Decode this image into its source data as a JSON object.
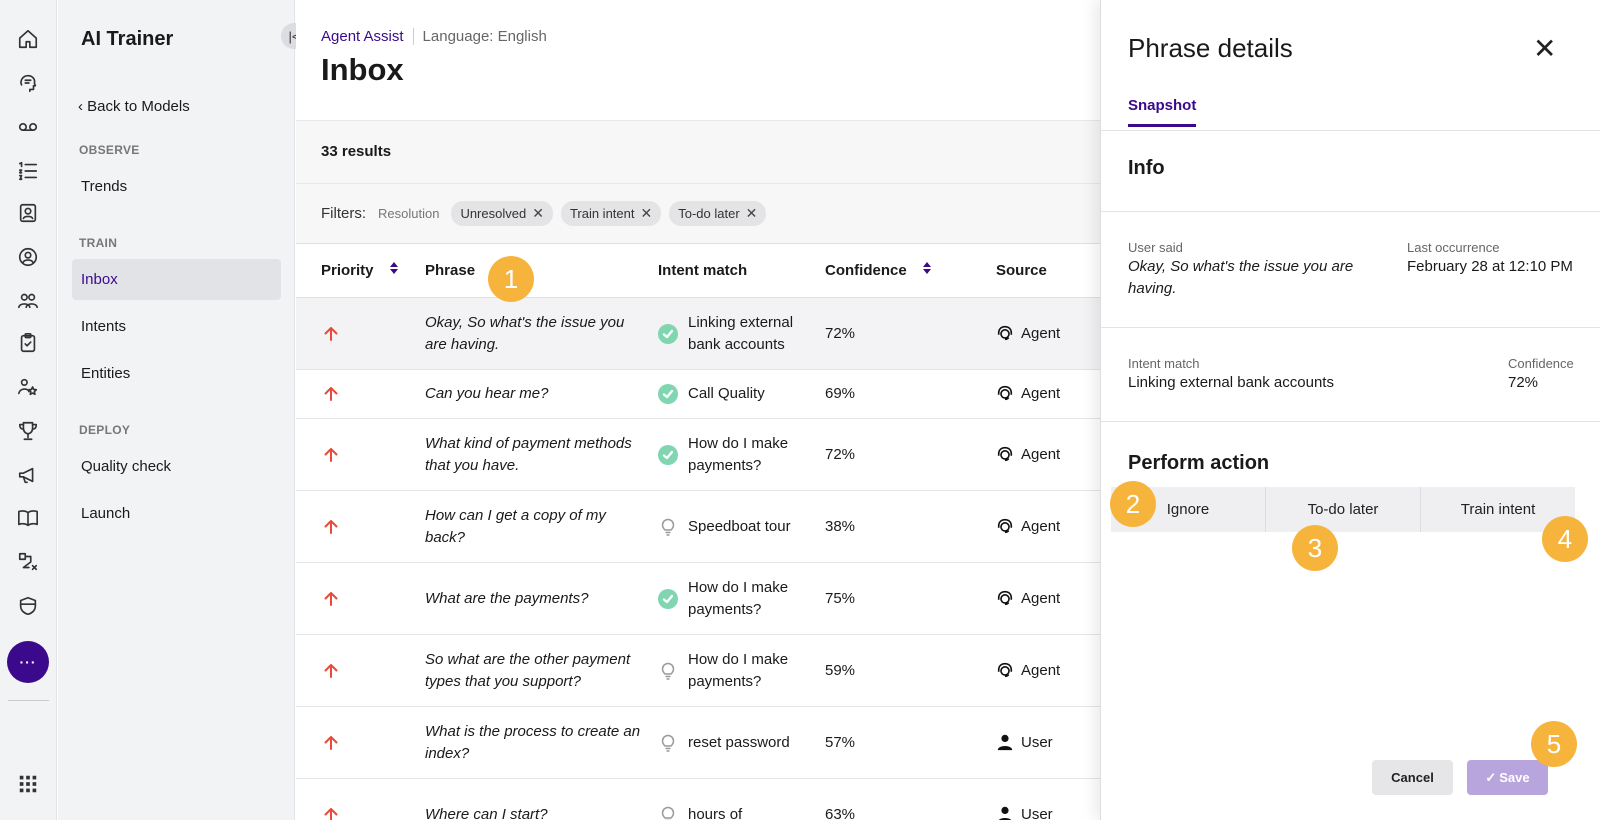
{
  "app": {
    "title": "AI Trainer",
    "back": "Back to Models"
  },
  "nav": {
    "sections": [
      {
        "label": "OBSERVE",
        "items": [
          "Trends"
        ]
      },
      {
        "label": "TRAIN",
        "items": [
          "Inbox",
          "Intents",
          "Entities"
        ]
      },
      {
        "label": "DEPLOY",
        "items": [
          "Quality check",
          "Launch"
        ]
      }
    ],
    "active": "Inbox",
    "more_label": "···"
  },
  "rail_icons": [
    "home-icon",
    "brain-icon",
    "voicemail-icon",
    "list-icon",
    "contact-card-icon",
    "agent-circle-icon",
    "team-icon",
    "clipboard-icon",
    "people-star-icon",
    "trophy-icon",
    "megaphone-icon",
    "book-icon",
    "flow-icon",
    "shield-icon",
    "apps-grid-icon"
  ],
  "breadcrumb": {
    "product": "Agent Assist",
    "language": "Language: English"
  },
  "page_title": "Inbox",
  "results": "33 results",
  "filters": {
    "label": "Filters:",
    "group": "Resolution",
    "chips": [
      "Unresolved",
      "Train intent",
      "To-do later"
    ]
  },
  "table": {
    "headers": {
      "priority": "Priority",
      "phrase": "Phrase",
      "intent": "Intent match",
      "confidence": "Confidence",
      "source": "Source"
    },
    "rows": [
      {
        "phrase": "Okay, So what's the issue you are having.",
        "intent": "Linking external bank accounts",
        "matched": true,
        "confidence": "72%",
        "source": "Agent"
      },
      {
        "phrase": "Can you hear me?",
        "intent": "Call Quality",
        "matched": true,
        "confidence": "69%",
        "source": "Agent"
      },
      {
        "phrase": "What kind of payment methods that you have.",
        "intent": "How do I make payments?",
        "matched": true,
        "confidence": "72%",
        "source": "Agent"
      },
      {
        "phrase": "How can I get a copy of my back?",
        "intent": "Speedboat tour",
        "matched": false,
        "confidence": "38%",
        "source": "Agent"
      },
      {
        "phrase": "What are the payments?",
        "intent": "How do I make payments?",
        "matched": true,
        "confidence": "75%",
        "source": "Agent"
      },
      {
        "phrase": "So what are the other payment types that you support?",
        "intent": "How do I make payments?",
        "matched": false,
        "confidence": "59%",
        "source": "Agent"
      },
      {
        "phrase": "What is the process to create an index?",
        "intent": "reset password",
        "matched": false,
        "confidence": "57%",
        "source": "User"
      },
      {
        "phrase": "Where can I start?",
        "intent": "hours of",
        "matched": false,
        "confidence": "63%",
        "source": "User"
      }
    ]
  },
  "panel": {
    "title": "Phrase details",
    "tab": "Snapshot",
    "info_heading": "Info",
    "user_said_label": "User said",
    "user_said": "Okay, So what's the issue you are having.",
    "last_occurrence_label": "Last occurrence",
    "last_occurrence": "February 28 at 12:10 PM",
    "intent_match_label": "Intent match",
    "intent_match": "Linking external bank accounts",
    "confidence_label": "Confidence",
    "confidence": "72%",
    "action_heading": "Perform action",
    "actions": [
      "Ignore",
      "To-do later",
      "Train intent"
    ],
    "cancel": "Cancel",
    "save": "Save"
  },
  "callouts": [
    "1",
    "2",
    "3",
    "4",
    "5"
  ],
  "colors": {
    "accent": "#3b0a8c",
    "callout": "#f7b43d",
    "priority": "#e34b3c",
    "match": "#7fd6b0"
  }
}
